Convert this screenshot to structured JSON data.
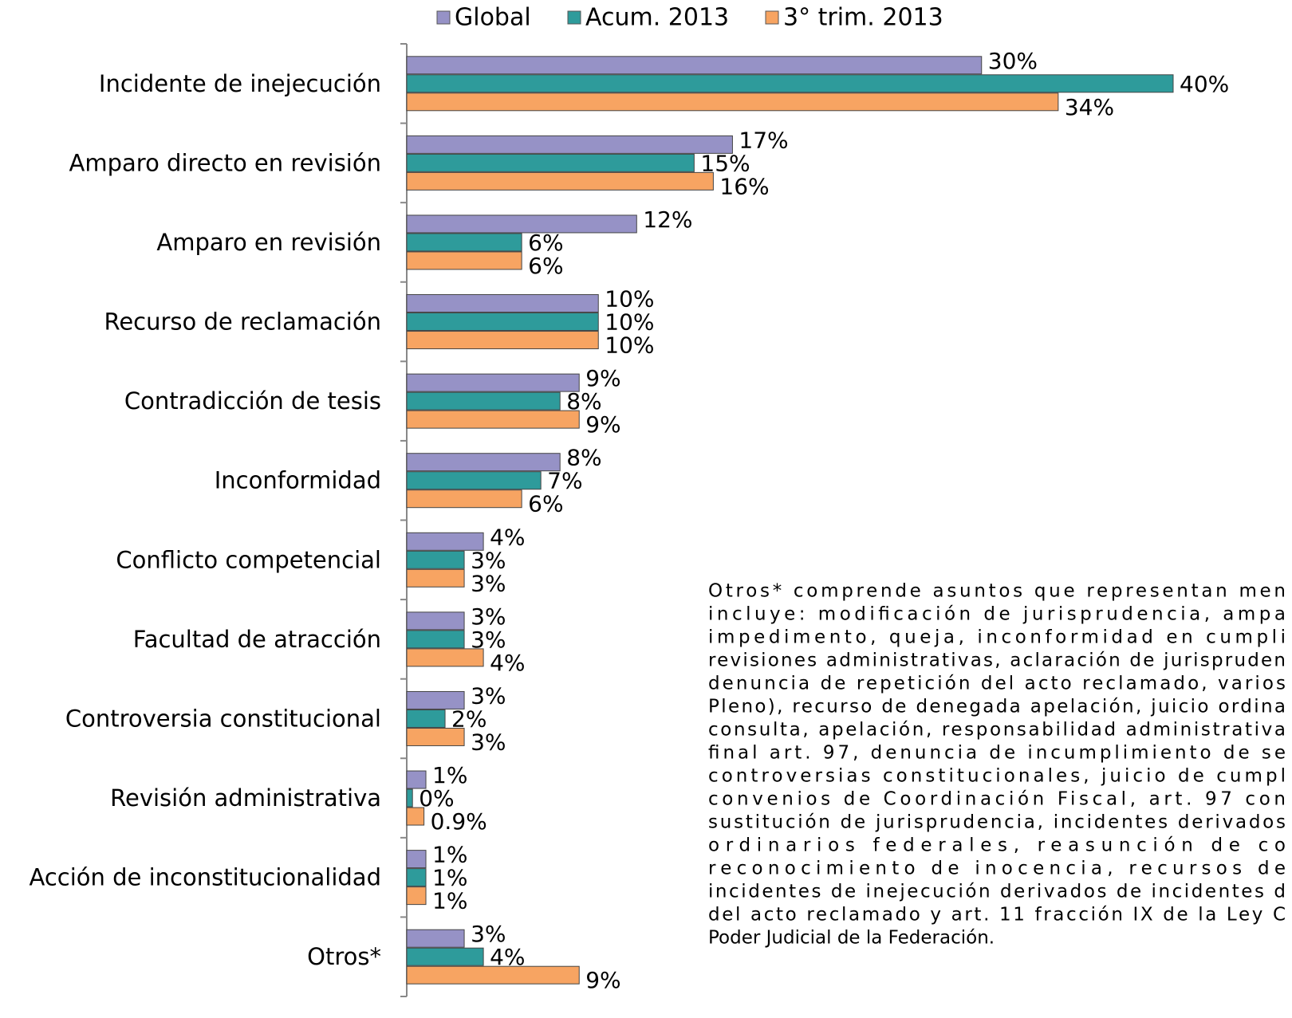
{
  "chart_data": {
    "type": "bar",
    "orientation": "horizontal",
    "categories": [
      "Incidente de inejecución",
      "Amparo directo en revisión",
      "Amparo en revisión",
      "Recurso de reclamación",
      "Contradicción de tesis",
      "Inconformidad",
      "Conflicto competencial",
      "Facultad de atracción",
      "Controversia constitucional",
      "Revisión administrativa",
      "Acción de inconstitucionalidad",
      "Otros*"
    ],
    "series": [
      {
        "name": "Global",
        "color": "#9692c6",
        "values": [
          30,
          17,
          12,
          10,
          9,
          8,
          4,
          3,
          3,
          1,
          1,
          3
        ],
        "value_labels": [
          "30%",
          "17%",
          "12%",
          "10%",
          "9%",
          "8%",
          "4%",
          "3%",
          "3%",
          "1%",
          "1%",
          "3%"
        ]
      },
      {
        "name": "Acum. 2013",
        "color": "#2e9b9b",
        "values": [
          40,
          15,
          6,
          10,
          8,
          7,
          3,
          3,
          2,
          0.3,
          1,
          4
        ],
        "value_labels": [
          "40%",
          "15%",
          "6%",
          "10%",
          "8%",
          "7%",
          "3%",
          "3%",
          "2%",
          "0%",
          "1%",
          "4%"
        ]
      },
      {
        "name": "3° trim. 2013",
        "color": "#f7a462",
        "values": [
          34,
          16,
          6,
          10,
          9,
          6,
          3,
          4,
          3,
          0.9,
          1,
          9
        ],
        "value_labels": [
          "34%",
          "16%",
          "6%",
          "10%",
          "9%",
          "6%",
          "3%",
          "4%",
          "3%",
          "0.9%",
          "1%",
          "9%"
        ]
      }
    ],
    "legend": "top",
    "note": [
      "Otros* comprende asuntos que representan men",
      "incluye: modificación de jurisprudencia, ampa",
      "impedimento, queja, inconformidad en cumpli",
      "revisiones administrativas, aclaración de jurispruden",
      "denuncia de repetición del acto reclamado, varios",
      "Pleno), recurso de denegada apelación, juicio ordina",
      "consulta, apelación, responsabilidad administrativa",
      "final art. 97, denuncia de incumplimiento de se",
      "controversias constitucionales, juicio de cumpl",
      "convenios de Coordinación Fiscal, art. 97 con",
      "sustitución de jurisprudencia, incidentes derivados",
      "ordinarios federales, reasunción de co",
      "reconocimiento de inocencia, recursos de",
      "incidentes de inejecución derivados de incidentes d",
      "del acto reclamado y art. 11 fracción IX de la Ley C",
      "Poder Judicial de la Federación."
    ]
  }
}
